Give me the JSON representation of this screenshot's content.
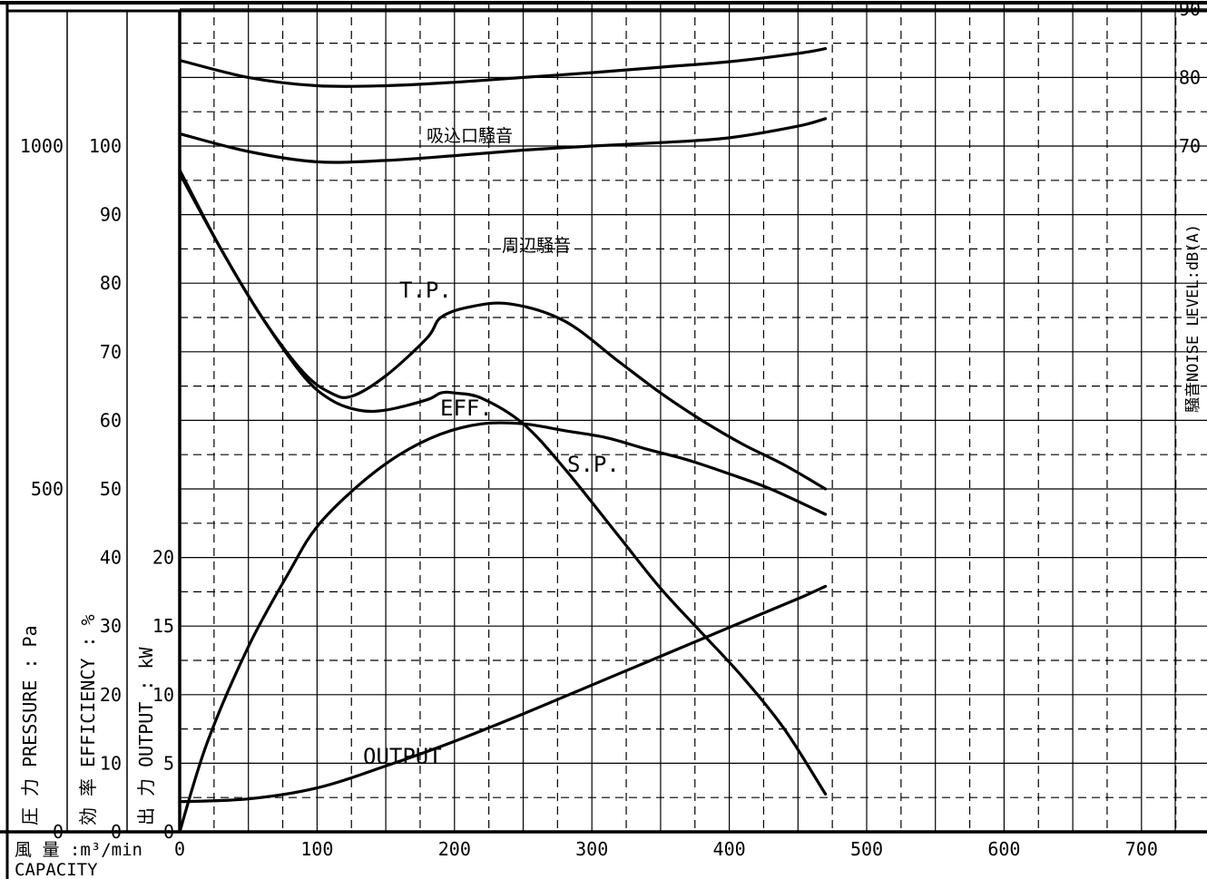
{
  "chart_data": {
    "type": "line",
    "title": "",
    "x_axis": {
      "label_jp": "風 量 :m³/min",
      "label_en": "CAPACITY",
      "range": [
        0,
        750
      ],
      "ticks": [
        0,
        100,
        200,
        300,
        400,
        500,
        600,
        700
      ]
    },
    "y_axes": {
      "pressure": {
        "label": "圧 力 PRESSURE : Pa",
        "unit": "Pa",
        "range": [
          0,
          1500
        ],
        "ticks": [
          0,
          500,
          1000
        ]
      },
      "efficiency": {
        "label": "効 率 EFFICIENCY : %",
        "unit": "%",
        "range": [
          0,
          150
        ],
        "ticks": [
          0,
          10,
          20,
          30,
          40,
          50,
          60,
          70,
          80,
          90,
          100
        ]
      },
      "output": {
        "label": "出 力 OUTPUT : kW",
        "unit": "kW",
        "range": [
          0,
          75
        ],
        "ticks": [
          0,
          5,
          10,
          15,
          20
        ]
      },
      "noise": {
        "label": "騒音NOISE LEVEL:dB(A)",
        "unit": "dB(A)",
        "range": [
          -30,
          120
        ],
        "ticks": [
          70,
          80,
          90
        ]
      }
    },
    "grid": true,
    "legend": "none",
    "series": [
      {
        "name": "吸込口騒音",
        "axis": "noise",
        "x": [
          0,
          50,
          100,
          150,
          200,
          250,
          300,
          350,
          400,
          450,
          470
        ],
        "y": [
          82.5,
          80.0,
          78.8,
          78.8,
          79.3,
          80.0,
          80.7,
          81.5,
          82.3,
          83.5,
          84.2
        ]
      },
      {
        "name": "周辺騒音",
        "axis": "noise",
        "x": [
          0,
          50,
          100,
          150,
          200,
          250,
          300,
          350,
          400,
          450,
          470
        ],
        "y": [
          71.8,
          69.2,
          67.7,
          67.9,
          68.6,
          69.4,
          70.0,
          70.5,
          71.2,
          72.9,
          74.0
        ]
      },
      {
        "name": "T.P.",
        "axis": "pressure",
        "x": [
          0,
          30,
          60,
          90,
          110,
          125,
          150,
          180,
          190,
          210,
          240,
          280,
          320,
          350,
          380,
          410,
          440,
          470
        ],
        "y": [
          960,
          850,
          750,
          670,
          640,
          635,
          665,
          720,
          750,
          765,
          770,
          745,
          685,
          640,
          600,
          565,
          535,
          500
        ]
      },
      {
        "name": "S.P.",
        "axis": "pressure",
        "x": [
          0,
          30,
          60,
          90,
          110,
          130,
          150,
          180,
          190,
          200,
          220,
          250,
          280,
          320,
          350,
          380,
          410,
          440,
          470
        ],
        "y": [
          965,
          850,
          750,
          665,
          630,
          615,
          615,
          630,
          640,
          640,
          632,
          595,
          530,
          430,
          355,
          290,
          225,
          150,
          55
        ]
      },
      {
        "name": "EFF.",
        "axis": "efficiency",
        "x": [
          0,
          20,
          50,
          80,
          100,
          130,
          160,
          190,
          220,
          250,
          280,
          310,
          340,
          370,
          400,
          430,
          470
        ],
        "y": [
          0,
          13,
          27,
          38,
          44.5,
          50.5,
          55,
          58,
          59.5,
          59.5,
          58.5,
          57.5,
          55.8,
          54.2,
          52.2,
          50.0,
          46.3
        ]
      },
      {
        "name": "OUTPUT",
        "axis": "output",
        "x": [
          0,
          50,
          100,
          150,
          200,
          250,
          300,
          350,
          400,
          450,
          470
        ],
        "y": [
          2.2,
          2.4,
          3.2,
          4.8,
          6.6,
          8.6,
          10.7,
          12.8,
          14.9,
          17.0,
          17.9
        ]
      }
    ]
  }
}
